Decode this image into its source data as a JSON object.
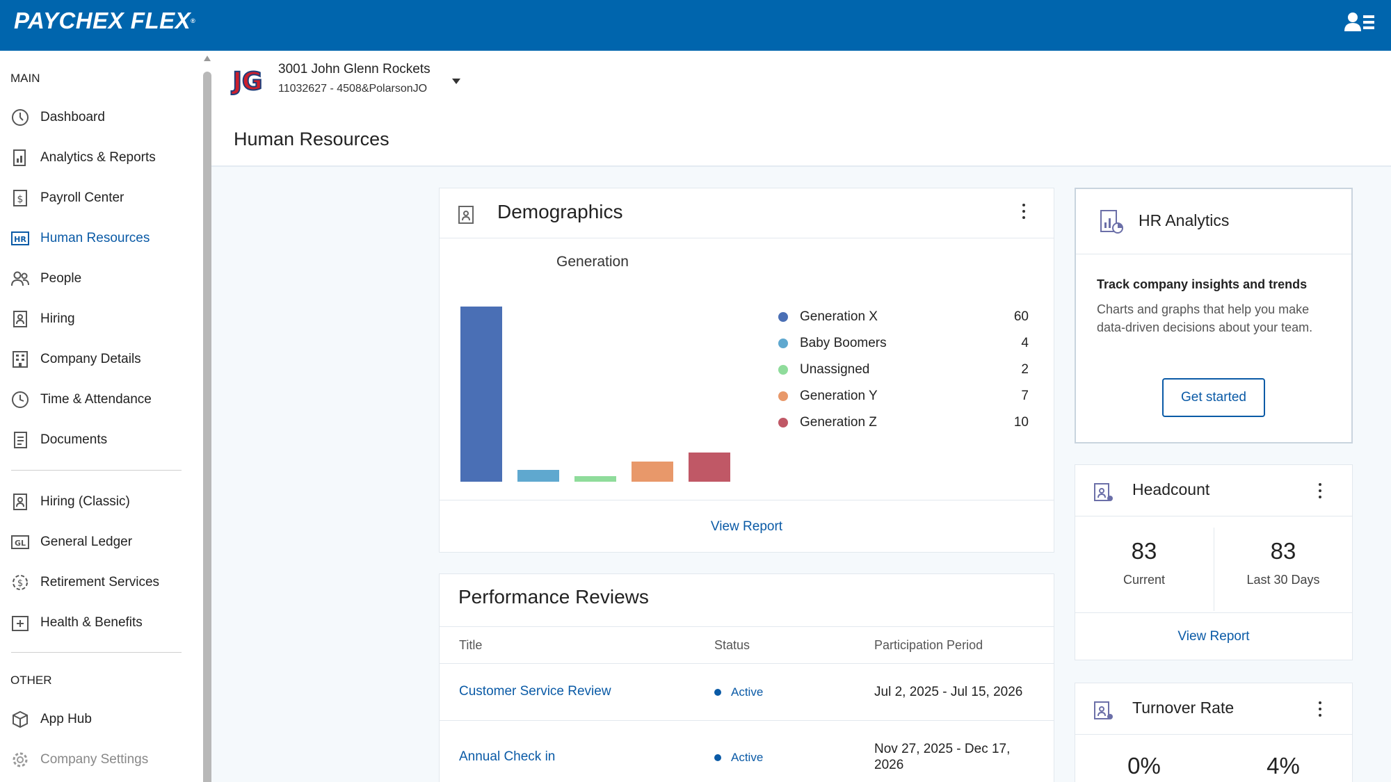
{
  "app": {
    "brand": "PAYCHEX FLEX",
    "brand_mark": "®"
  },
  "company": {
    "name": "3001 John Glenn Rockets",
    "id_line": "11032627 - 4508&PolarsonJO",
    "logo_text": "JG"
  },
  "page": {
    "title": "Human Resources"
  },
  "sidebar": {
    "section_main": "MAIN",
    "main_items": [
      {
        "label": "Dashboard",
        "icon": "dashboard-icon"
      },
      {
        "label": "Analytics & Reports",
        "icon": "analytics-report-icon"
      },
      {
        "label": "Payroll Center",
        "icon": "payroll-document-icon"
      },
      {
        "label": "Human Resources",
        "icon": "hr-icon",
        "active": true
      },
      {
        "label": "People",
        "icon": "people-icon"
      },
      {
        "label": "Hiring",
        "icon": "hiring-icon"
      },
      {
        "label": "Company Details",
        "icon": "building-icon"
      },
      {
        "label": "Time & Attendance",
        "icon": "clock-icon"
      },
      {
        "label": "Documents",
        "icon": "documents-icon"
      }
    ],
    "secondary_items": [
      {
        "label": "Hiring (Classic)",
        "icon": "hiring-icon"
      },
      {
        "label": "General Ledger",
        "icon": "gl-icon"
      },
      {
        "label": "Retirement Services",
        "icon": "retirement-icon"
      },
      {
        "label": "Health & Benefits",
        "icon": "health-plus-icon"
      }
    ],
    "section_other": "OTHER",
    "other_items": [
      {
        "label": "App Hub",
        "icon": "cube-icon"
      },
      {
        "label": "Company Settings",
        "icon": "gear-icon"
      }
    ]
  },
  "demographics": {
    "title": "Demographics",
    "subtitle": "Generation",
    "view_report": "View Report",
    "legend": [
      {
        "label": "Generation X",
        "value": "60"
      },
      {
        "label": "Baby Boomers",
        "value": "4"
      },
      {
        "label": "Unassigned",
        "value": "2"
      },
      {
        "label": "Generation Y",
        "value": "7"
      },
      {
        "label": "Generation Z",
        "value": "10"
      }
    ]
  },
  "chart_data": {
    "type": "bar",
    "title": "Generation",
    "categories": [
      "Generation X",
      "Baby Boomers",
      "Unassigned",
      "Generation Y",
      "Generation Z"
    ],
    "values": [
      60,
      4,
      2,
      7,
      10
    ],
    "colors": [
      "#4a6fb5",
      "#5fa8cf",
      "#8fdc9b",
      "#e8986a",
      "#c05866"
    ],
    "ylim": [
      0,
      60
    ],
    "grid": false,
    "legend": "right"
  },
  "performance": {
    "title": "Performance Reviews",
    "columns": [
      "Title",
      "Status",
      "Participation Period"
    ],
    "rows": [
      {
        "title": "Customer Service Review",
        "status": "Active",
        "period": "Jul 2, 2025 - Jul 15, 2026"
      },
      {
        "title": "Annual Check in",
        "status": "Active",
        "period": "Nov 27, 2025 - Dec 17, 2026"
      }
    ]
  },
  "hr_analytics": {
    "title": "HR Analytics",
    "headline": "Track company insights and trends",
    "description": "Charts and graphs that help you make data-driven decisions about your team.",
    "button": "Get started"
  },
  "headcount": {
    "title": "Headcount",
    "current_value": "83",
    "current_label": "Current",
    "last30_value": "83",
    "last30_label": "Last 30 Days",
    "view_report": "View Report"
  },
  "turnover": {
    "title": "Turnover Rate",
    "value_a": "0%",
    "value_b": "4%"
  },
  "colors": {
    "brand": "#0065ad",
    "link": "#0a5aa6"
  }
}
